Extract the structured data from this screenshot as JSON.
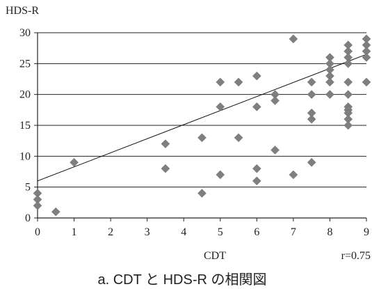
{
  "chart_data": {
    "type": "scatter",
    "ylabel": "HDS-R",
    "xlabel": "CDT",
    "annotation": "r=0.75",
    "caption": "a. CDT と HDS-R の相関図",
    "xlim": [
      0,
      9
    ],
    "ylim": [
      0,
      30
    ],
    "x_ticks": [
      "0",
      "1",
      "2",
      "3",
      "4",
      "5",
      "6",
      "7",
      "8",
      "9"
    ],
    "y_ticks": [
      "0",
      "5",
      "10",
      "15",
      "20",
      "25",
      "30"
    ],
    "y_grid": true,
    "marker_color": "#7f7f7f",
    "points": [
      [
        0,
        4
      ],
      [
        0,
        3
      ],
      [
        0,
        2
      ],
      [
        0.5,
        1
      ],
      [
        1,
        9
      ],
      [
        3.5,
        12
      ],
      [
        3.5,
        8
      ],
      [
        4.5,
        13
      ],
      [
        4.5,
        4
      ],
      [
        5,
        22
      ],
      [
        5,
        18
      ],
      [
        5,
        7
      ],
      [
        5.5,
        22
      ],
      [
        5.5,
        13
      ],
      [
        6,
        23
      ],
      [
        6,
        18
      ],
      [
        6,
        8
      ],
      [
        6,
        6
      ],
      [
        6.5,
        20
      ],
      [
        6.5,
        19
      ],
      [
        6.5,
        11
      ],
      [
        7,
        29
      ],
      [
        7,
        7
      ],
      [
        7.5,
        22
      ],
      [
        7.5,
        20
      ],
      [
        7.5,
        17
      ],
      [
        7.5,
        16
      ],
      [
        7.5,
        9
      ],
      [
        8,
        26
      ],
      [
        8,
        25
      ],
      [
        8,
        24
      ],
      [
        8,
        23
      ],
      [
        8,
        22
      ],
      [
        8,
        20
      ],
      [
        8.5,
        28
      ],
      [
        8.5,
        27
      ],
      [
        8.5,
        26
      ],
      [
        8.5,
        25
      ],
      [
        8.5,
        22
      ],
      [
        8.5,
        20
      ],
      [
        8.5,
        18
      ],
      [
        8.5,
        17.5
      ],
      [
        8.5,
        17
      ],
      [
        8.5,
        16
      ],
      [
        8.5,
        15
      ],
      [
        9,
        29
      ],
      [
        9,
        28
      ],
      [
        9,
        27
      ],
      [
        9,
        26
      ],
      [
        9,
        22
      ]
    ],
    "trendline": {
      "x": [
        0,
        9
      ],
      "y": [
        6,
        26.5
      ]
    }
  }
}
